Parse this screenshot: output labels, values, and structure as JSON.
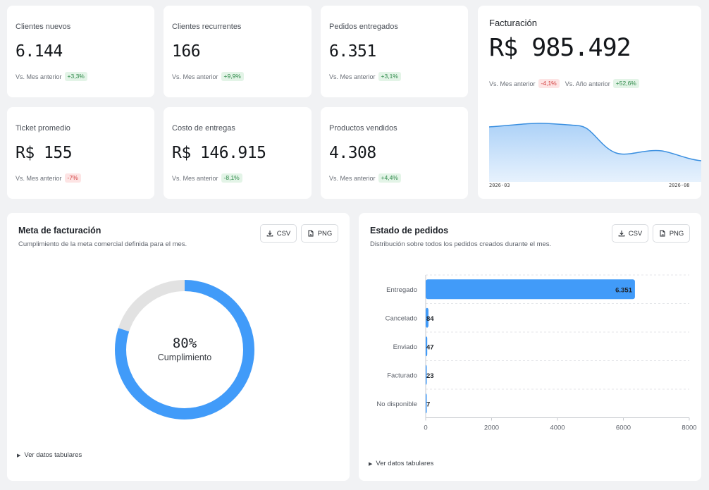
{
  "kpis": [
    {
      "label": "Clientes nuevos",
      "value": "6.144",
      "cmp_label": "Vs. Mes anterior",
      "delta": "+3,3%",
      "trend": "pos"
    },
    {
      "label": "Clientes recurrentes",
      "value": "166",
      "cmp_label": "Vs. Mes anterior",
      "delta": "+9,9%",
      "trend": "pos"
    },
    {
      "label": "Pedidos entregados",
      "value": "6.351",
      "cmp_label": "Vs. Mes anterior",
      "delta": "+3,1%",
      "trend": "pos"
    },
    {
      "label": "Ticket promedio",
      "value": "R$ 155",
      "cmp_label": "Vs. Mes anterior",
      "delta": "-7%",
      "trend": "neg"
    },
    {
      "label": "Costo de entregas",
      "value": "R$ 146.915",
      "cmp_label": "Vs. Mes anterior",
      "delta": "-8,1%",
      "trend": "pos"
    },
    {
      "label": "Productos vendidos",
      "value": "4.308",
      "cmp_label": "Vs. Mes anterior",
      "delta": "+4,4%",
      "trend": "pos"
    }
  ],
  "facturacion": {
    "title": "Facturación",
    "value": "R$ 985.492",
    "cmp1_label": "Vs. Mes anterior",
    "cmp1_delta": "-4,1%",
    "cmp2_label": "Vs. Año anterior",
    "cmp2_delta": "+52,6%",
    "x_start": "2026-03",
    "x_end": "2026-08",
    "colors": {
      "line": "#3a8fe0",
      "fill": "#cfe4fb"
    }
  },
  "meta": {
    "title": "Meta de facturación",
    "subtitle": "Cumplimiento de la meta comercial definida para el mes.",
    "csv_label": "CSV",
    "png_label": "PNG",
    "percent": "80%",
    "percent_value": 0.8,
    "caption": "Cumplimiento",
    "tabular_label": "Ver datos tabulares",
    "colors": {
      "progress": "#419bf9",
      "track": "#e2e2e2"
    }
  },
  "estado": {
    "title": "Estado de pedidos",
    "subtitle": "Distribución sobre todos los pedidos creados durante el mes.",
    "csv_label": "CSV",
    "png_label": "PNG",
    "tabular_label": "Ver datos tabulares",
    "colors": {
      "bar": "#419bf9"
    }
  },
  "chart_data": {
    "type": "bar",
    "orientation": "horizontal",
    "categories": [
      "Entregado",
      "Cancelado",
      "Enviado",
      "Facturado",
      "No disponible"
    ],
    "values": [
      6351,
      84,
      47,
      23,
      7
    ],
    "value_labels": [
      "6.351",
      "84",
      "47",
      "23",
      "7"
    ],
    "xlim": [
      0,
      8000
    ],
    "xticks": [
      0,
      2000,
      4000,
      6000,
      8000
    ],
    "grid": true
  }
}
